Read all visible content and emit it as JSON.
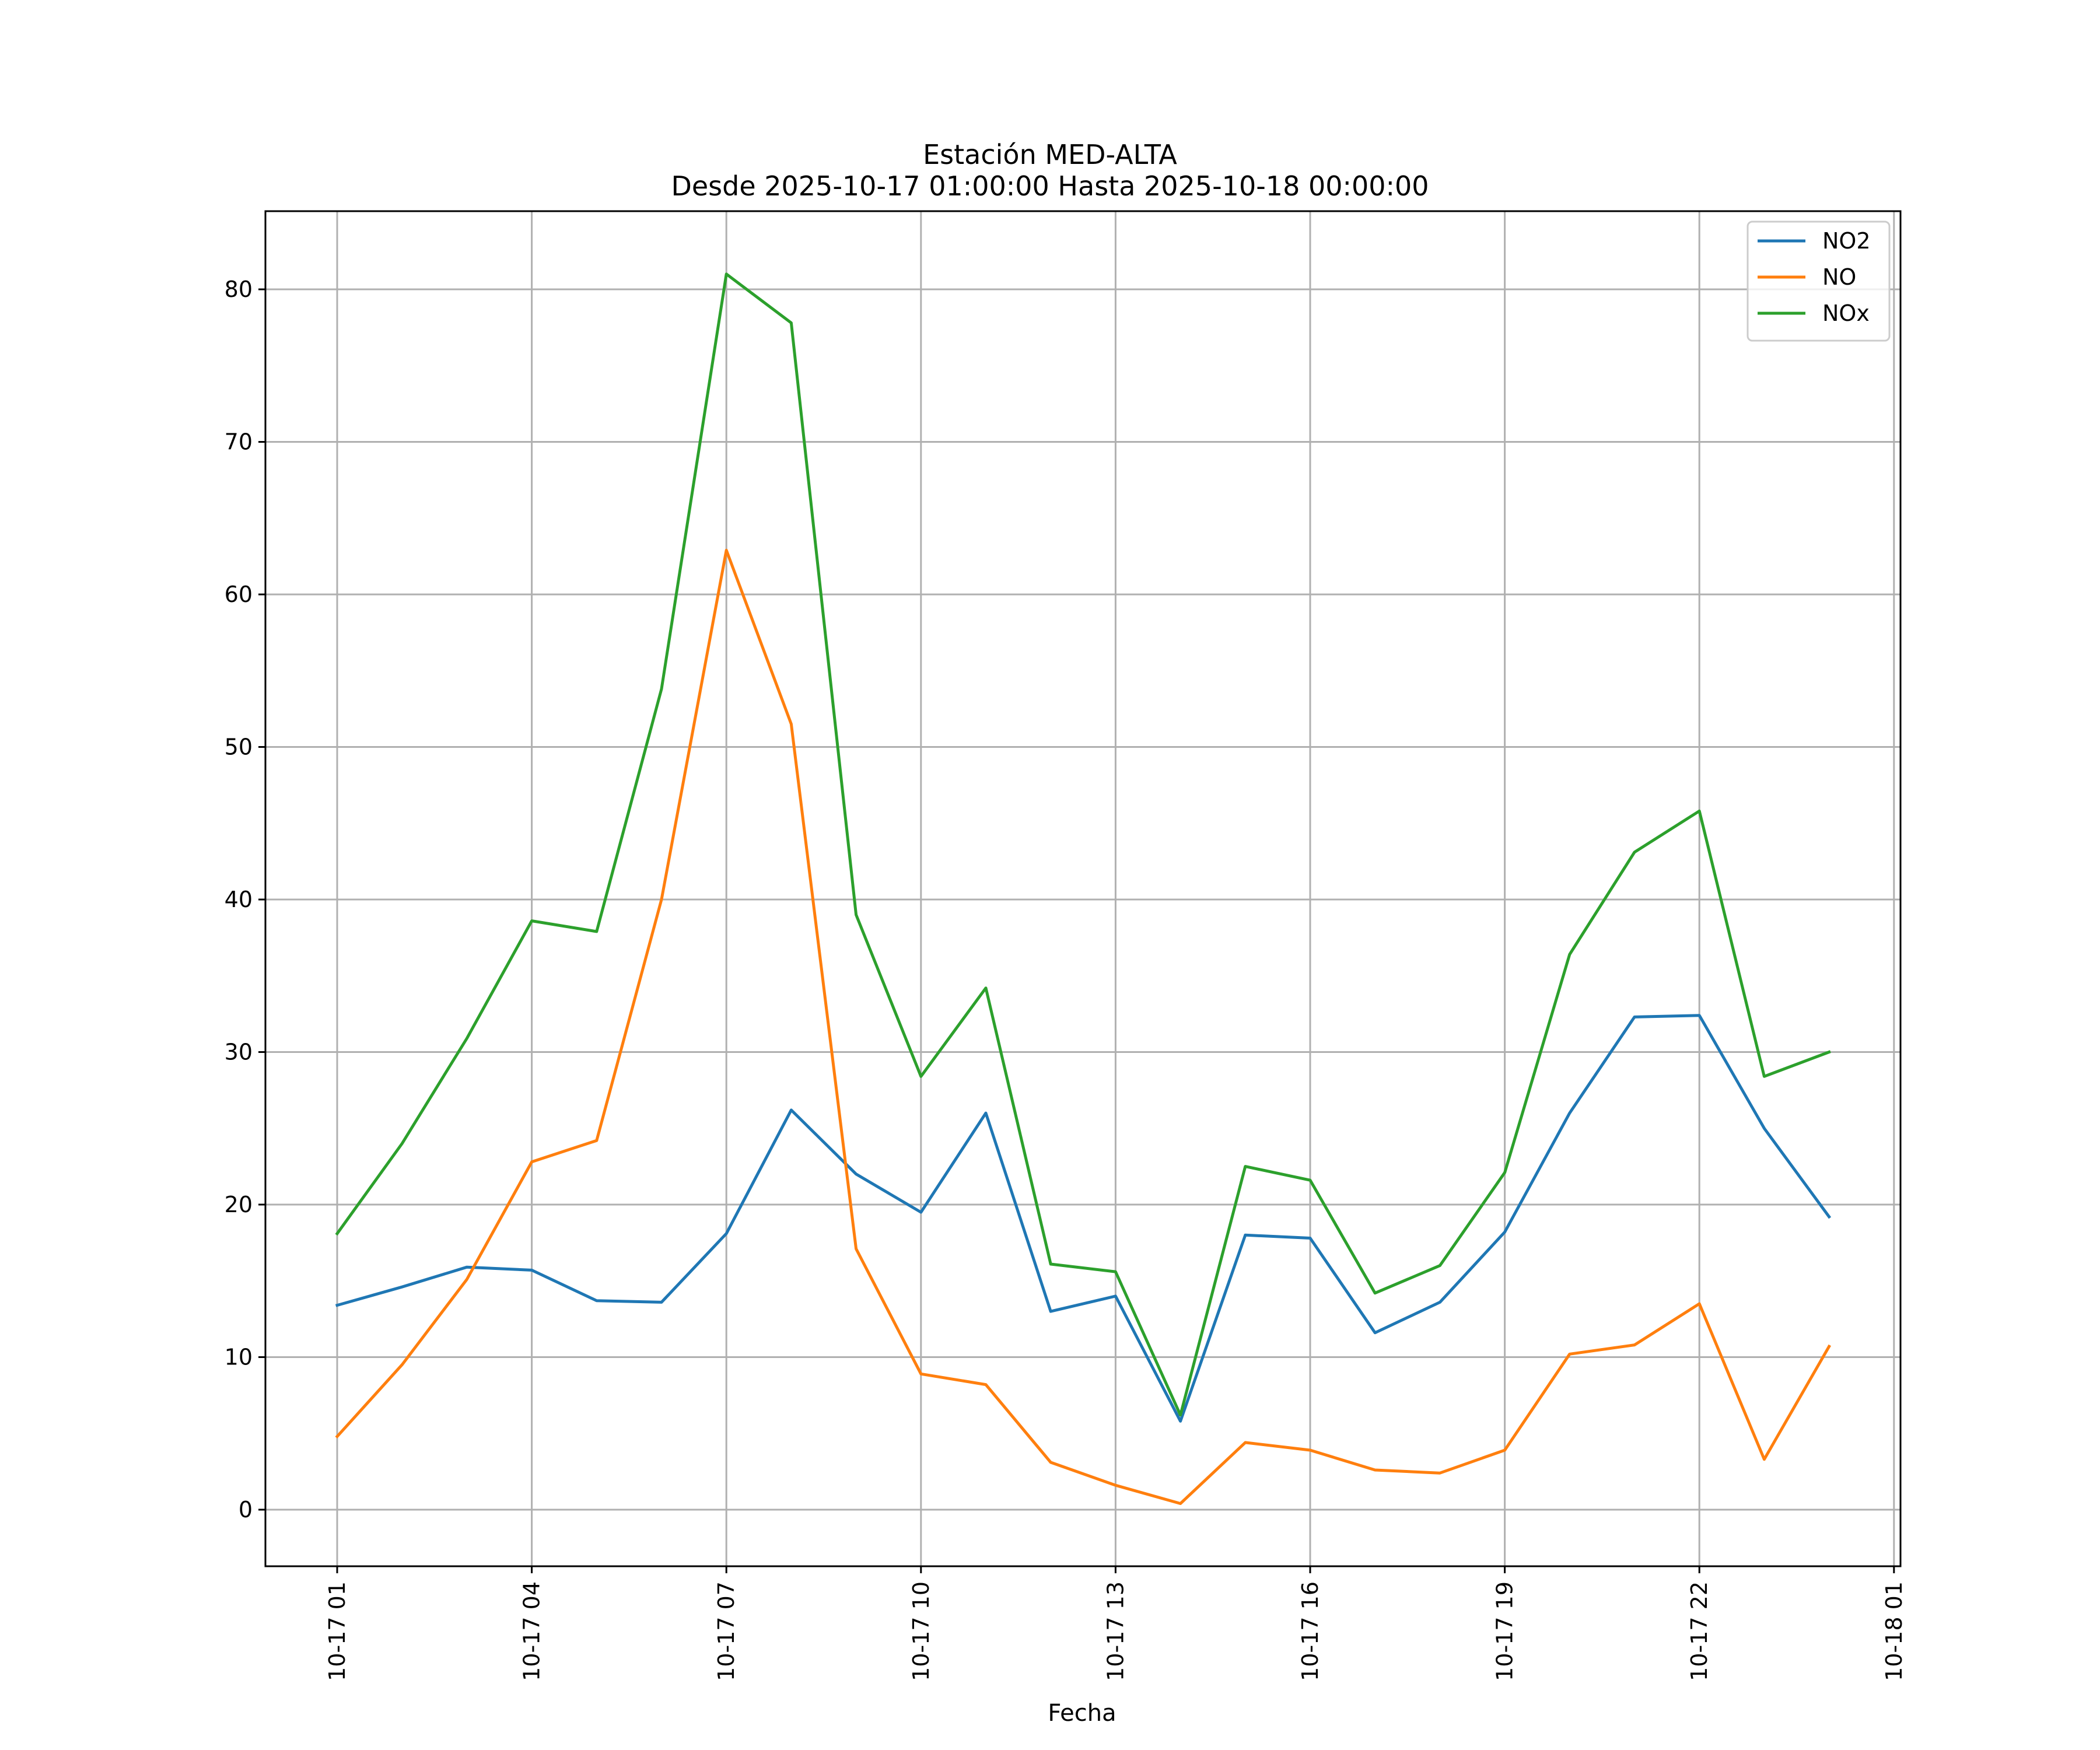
{
  "chart_data": {
    "type": "line",
    "title": "Estación MED-ALTA",
    "subtitle": "Desde 2025-10-17 01:00:00 Hasta 2025-10-18 00:00:00",
    "xlabel": "Fecha",
    "ylabel": "",
    "x": [
      "2025-10-17 01:00",
      "2025-10-17 02:00",
      "2025-10-17 03:00",
      "2025-10-17 04:00",
      "2025-10-17 05:00",
      "2025-10-17 06:00",
      "2025-10-17 07:00",
      "2025-10-17 08:00",
      "2025-10-17 09:00",
      "2025-10-17 10:00",
      "2025-10-17 11:00",
      "2025-10-17 12:00",
      "2025-10-17 13:00",
      "2025-10-17 14:00",
      "2025-10-17 15:00",
      "2025-10-17 16:00",
      "2025-10-17 17:00",
      "2025-10-17 18:00",
      "2025-10-17 19:00",
      "2025-10-17 20:00",
      "2025-10-17 21:00",
      "2025-10-17 22:00",
      "2025-10-17 23:00",
      "2025-10-18 00:00"
    ],
    "x_ticks": [
      "10-17 01",
      "10-17 04",
      "10-17 07",
      "10-17 10",
      "10-17 13",
      "10-17 16",
      "10-17 19",
      "10-17 22",
      "10-18 01"
    ],
    "y_ticks": [
      0,
      10,
      20,
      30,
      40,
      50,
      60,
      70,
      80
    ],
    "ylim": [
      -3.7,
      85
    ],
    "grid": true,
    "legend_position": "top-right",
    "series": [
      {
        "name": "NO2",
        "color": "#1f77b4",
        "values": [
          13.4,
          14.6,
          15.9,
          15.7,
          13.7,
          13.6,
          18.1,
          26.2,
          22.0,
          19.5,
          26.0,
          13.0,
          14.0,
          5.8,
          18.0,
          17.8,
          11.6,
          13.6,
          18.2,
          26.0,
          32.3,
          32.4,
          25.0,
          19.2
        ]
      },
      {
        "name": "NO",
        "color": "#ff7f0e",
        "values": [
          4.8,
          9.5,
          15.1,
          22.8,
          24.2,
          40.0,
          62.9,
          51.5,
          17.1,
          8.9,
          8.2,
          3.1,
          1.6,
          0.4,
          4.4,
          3.9,
          2.6,
          2.4,
          3.9,
          10.2,
          10.8,
          13.5,
          3.3,
          10.7
        ]
      },
      {
        "name": "NOx",
        "color": "#2ca02c",
        "values": [
          18.1,
          24.0,
          30.9,
          38.6,
          37.9,
          53.8,
          81.0,
          77.8,
          39.0,
          28.4,
          34.2,
          16.1,
          15.6,
          6.2,
          22.5,
          21.6,
          14.2,
          16.0,
          22.1,
          36.4,
          43.1,
          45.8,
          28.4,
          30.0
        ]
      }
    ]
  }
}
